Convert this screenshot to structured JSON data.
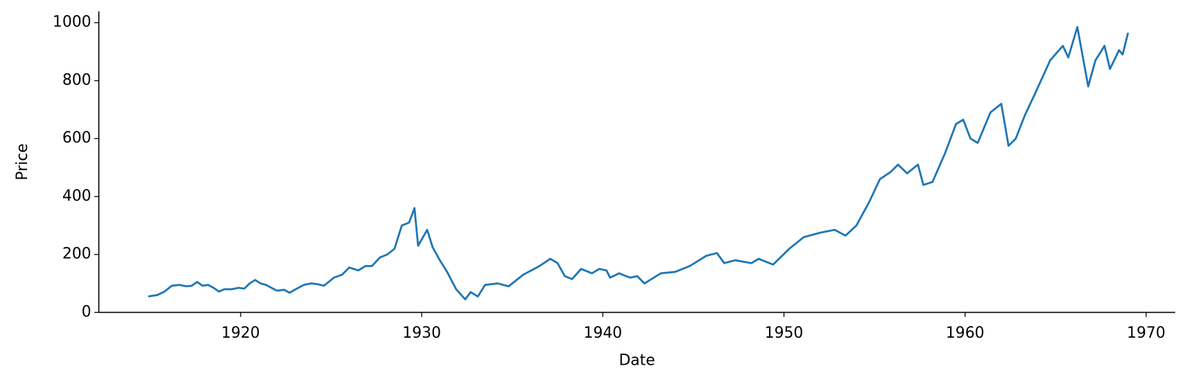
{
  "chart_data": {
    "type": "line",
    "xlabel": "Date",
    "ylabel": "Price",
    "color": "#1f77b4",
    "x": [
      1914.9,
      1915.4,
      1915.8,
      1916.2,
      1916.6,
      1917.0,
      1917.3,
      1917.6,
      1917.9,
      1918.2,
      1918.5,
      1918.8,
      1919.1,
      1919.5,
      1919.9,
      1920.2,
      1920.5,
      1920.8,
      1921.1,
      1921.4,
      1921.7,
      1922.0,
      1922.4,
      1922.7,
      1923.1,
      1923.5,
      1923.9,
      1924.2,
      1924.6,
      1925.15,
      1925.6,
      1926.0,
      1926.5,
      1926.9,
      1927.25,
      1927.7,
      1928.1,
      1928.5,
      1928.9,
      1929.3,
      1929.6,
      1929.8,
      1930.3,
      1930.6,
      1931.0,
      1931.4,
      1931.9,
      1932.4,
      1932.7,
      1933.1,
      1933.5,
      1934.2,
      1934.8,
      1935.6,
      1936.5,
      1937.1,
      1937.5,
      1937.9,
      1938.3,
      1938.8,
      1939.4,
      1939.8,
      1940.2,
      1940.4,
      1940.9,
      1941.5,
      1941.9,
      1942.3,
      1943.2,
      1944.0,
      1944.8,
      1945.7,
      1946.3,
      1946.7,
      1947.3,
      1948.2,
      1948.6,
      1949.4,
      1950.3,
      1951.1,
      1952.0,
      1952.8,
      1953.4,
      1954.0,
      1954.7,
      1955.3,
      1955.9,
      1956.3,
      1956.8,
      1957.4,
      1957.7,
      1958.2,
      1958.9,
      1959.5,
      1959.9,
      1960.3,
      1960.7,
      1961.4,
      1962.0,
      1962.4,
      1962.8,
      1963.3,
      1963.9,
      1964.7,
      1965.4,
      1965.7,
      1966.2,
      1966.8,
      1967.2,
      1967.7,
      1968.0,
      1968.5,
      1968.7,
      1969.0
    ],
    "values": [
      55,
      60,
      72,
      92,
      95,
      90,
      92,
      105,
      92,
      95,
      85,
      72,
      80,
      80,
      85,
      82,
      100,
      112,
      100,
      95,
      85,
      75,
      78,
      68,
      82,
      95,
      100,
      98,
      92,
      120,
      130,
      155,
      145,
      160,
      160,
      190,
      200,
      220,
      300,
      310,
      360,
      230,
      285,
      225,
      180,
      140,
      80,
      45,
      70,
      55,
      95,
      100,
      90,
      130,
      160,
      185,
      170,
      125,
      115,
      150,
      135,
      150,
      145,
      120,
      135,
      120,
      125,
      100,
      135,
      140,
      160,
      195,
      205,
      170,
      180,
      170,
      185,
      165,
      220,
      260,
      275,
      285,
      265,
      300,
      380,
      460,
      485,
      510,
      480,
      510,
      440,
      450,
      550,
      650,
      665,
      600,
      585,
      690,
      720,
      575,
      600,
      680,
      760,
      870,
      920,
      880,
      985,
      780,
      870,
      920,
      840,
      905,
      890,
      965
    ],
    "xlim": [
      1912.17,
      1971.6
    ],
    "xticks": [
      1920,
      1930,
      1940,
      1950,
      1960,
      1970
    ],
    "ylim": [
      0,
      1039
    ],
    "yticks": [
      0,
      200,
      400,
      600,
      800,
      1000
    ]
  }
}
